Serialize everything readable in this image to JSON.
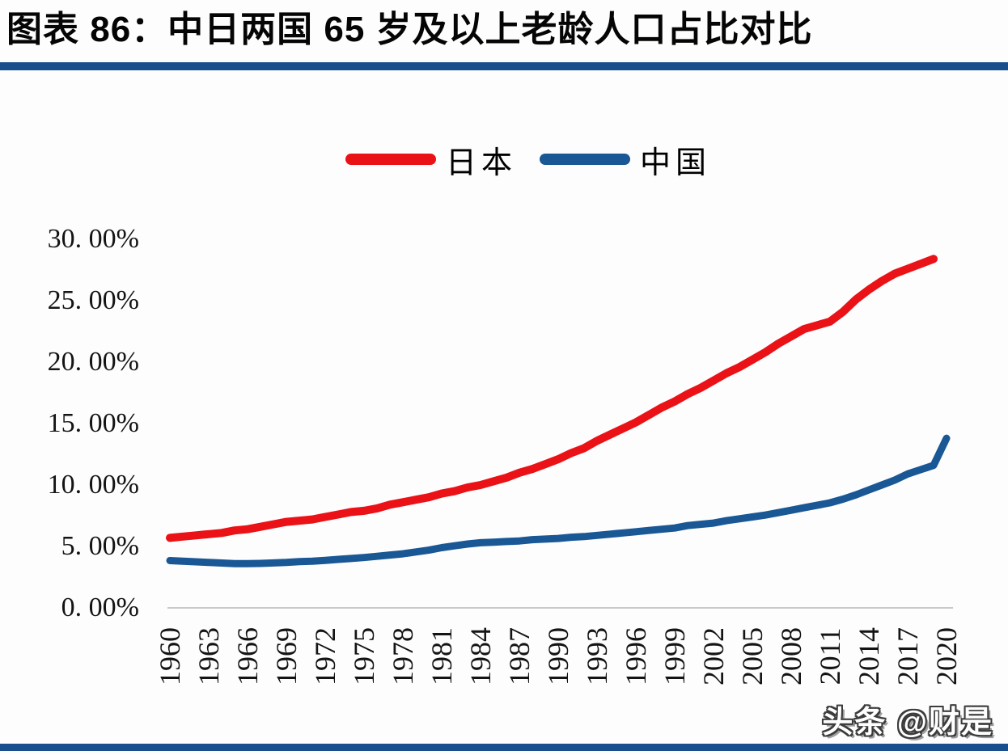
{
  "header": {
    "title": "图表 86：中日两国 65 岁及以上老龄人口占比对比"
  },
  "watermark": {
    "text": "头条 @财是"
  },
  "colors": {
    "accent_bar": "#1a4f8e",
    "japan_line": "#ea1216",
    "china_line": "#1a5795",
    "axis_line": "#c9c9c9",
    "background": "#fdfdfe"
  },
  "chart_data": {
    "type": "line",
    "title": "中日两国 65 岁及以上老龄人口占比对比",
    "xlabel": "",
    "ylabel": "",
    "grid": false,
    "legend_position": "top-center",
    "x_range": [
      1960,
      2020
    ],
    "y_axis": {
      "range": [
        0,
        30
      ],
      "tick_values": [
        0,
        5,
        10,
        15,
        20,
        25,
        30
      ],
      "tick_labels": [
        "0. 00%",
        "5. 00%",
        "10. 00%",
        "15. 00%",
        "20. 00%",
        "25. 00%",
        "30. 00%"
      ]
    },
    "x_axis": {
      "tick_labels": [
        "1960",
        "1963",
        "1966",
        "1969",
        "1972",
        "1975",
        "1978",
        "1981",
        "1984",
        "1987",
        "1990",
        "1993",
        "1996",
        "1999",
        "2002",
        "2005",
        "2008",
        "2011",
        "2014",
        "2017",
        "2020"
      ]
    },
    "series": [
      {
        "name": "日本",
        "color": "#ea1216",
        "x_start": 1960,
        "values": [
          5.7,
          5.8,
          5.9,
          6.0,
          6.1,
          6.3,
          6.4,
          6.6,
          6.8,
          7.0,
          7.1,
          7.2,
          7.4,
          7.6,
          7.8,
          7.9,
          8.1,
          8.4,
          8.6,
          8.8,
          9.0,
          9.3,
          9.5,
          9.8,
          10.0,
          10.3,
          10.6,
          11.0,
          11.3,
          11.7,
          12.1,
          12.6,
          13.0,
          13.6,
          14.1,
          14.6,
          15.1,
          15.7,
          16.3,
          16.8,
          17.4,
          17.9,
          18.5,
          19.1,
          19.6,
          20.2,
          20.8,
          21.5,
          22.1,
          22.7,
          23.0,
          23.3,
          24.1,
          25.1,
          25.9,
          26.6,
          27.2,
          27.6,
          28.0,
          28.4
        ]
      },
      {
        "name": "中国",
        "color": "#1a5795",
        "x_start": 1960,
        "values": [
          3.85,
          3.8,
          3.75,
          3.7,
          3.65,
          3.6,
          3.6,
          3.62,
          3.66,
          3.7,
          3.76,
          3.8,
          3.87,
          3.95,
          4.02,
          4.1,
          4.2,
          4.3,
          4.4,
          4.55,
          4.7,
          4.9,
          5.05,
          5.2,
          5.3,
          5.35,
          5.4,
          5.45,
          5.55,
          5.6,
          5.65,
          5.75,
          5.8,
          5.9,
          6.0,
          6.1,
          6.2,
          6.3,
          6.4,
          6.5,
          6.7,
          6.8,
          6.9,
          7.1,
          7.25,
          7.4,
          7.55,
          7.75,
          7.95,
          8.15,
          8.35,
          8.55,
          8.85,
          9.2,
          9.6,
          10.0,
          10.4,
          10.9,
          11.25,
          11.6,
          13.8
        ]
      }
    ]
  }
}
